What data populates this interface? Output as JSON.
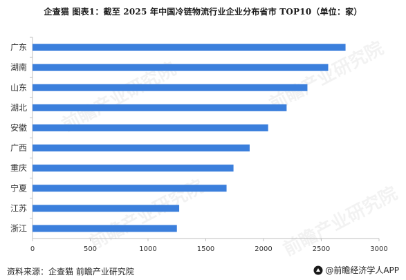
{
  "title": "企查猫  图表1：截至 2025 年中国冷链物流行业企业分布省市 TOP10（单位：家）",
  "footer": {
    "source": "资料来源：企查猫 前瞻产业研究院",
    "brand": "@前瞻经济学人APP"
  },
  "watermark": {
    "text": "前瞻产业研究院"
  },
  "colors": {
    "bar": "#3b7fdc",
    "axis": "#bfbfbf",
    "text": "#333333"
  },
  "chart_data": {
    "type": "bar",
    "orientation": "horizontal",
    "categories": [
      "广东",
      "湖南",
      "山东",
      "湖北",
      "安徽",
      "广西",
      "重庆",
      "宁夏",
      "江苏",
      "浙江"
    ],
    "values": [
      2710,
      2560,
      2380,
      2200,
      2040,
      1880,
      1740,
      1680,
      1270,
      1250
    ],
    "xlim": [
      0,
      3000
    ],
    "xticks": [
      0,
      500,
      1000,
      1500,
      2000,
      2500,
      3000
    ],
    "grid": false,
    "legend": false
  }
}
